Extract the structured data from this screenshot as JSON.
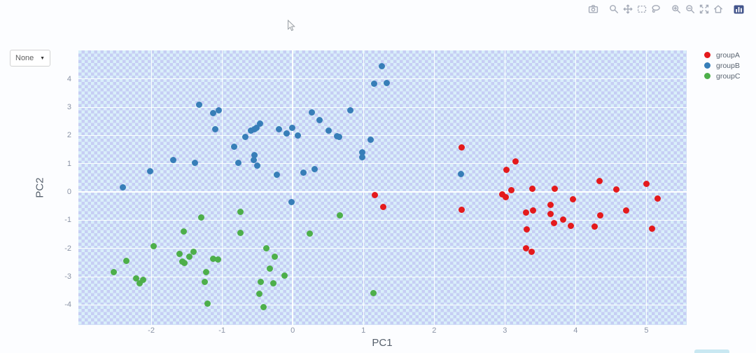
{
  "controls": {
    "dropdown": {
      "value": "None",
      "caret": "▼"
    }
  },
  "modebar": {
    "icons": [
      "camera",
      "zoom",
      "pan",
      "box-select",
      "lasso",
      "zoom-in",
      "zoom-out",
      "autoscale",
      "reset-home",
      "plotly-logo"
    ],
    "icon_color": "#a5abb8",
    "logo_color": "#43558c"
  },
  "legend": {
    "position": "right",
    "items": [
      {
        "label": "groupA",
        "color": "#e41a1c"
      },
      {
        "label": "groupB",
        "color": "#377eb8"
      },
      {
        "label": "groupC",
        "color": "#4daf4a"
      }
    ]
  },
  "chart_data": {
    "type": "scatter",
    "title": "",
    "xlabel": "PC1",
    "ylabel": "PC2",
    "xlim": [
      -3.03,
      5.57
    ],
    "ylim": [
      -4.71,
      5.01
    ],
    "xticks": [
      -2,
      -1,
      0,
      1,
      2,
      3,
      4,
      5
    ],
    "yticks": [
      -4,
      -3,
      -2,
      -1,
      0,
      1,
      2,
      3,
      4
    ],
    "grid": true,
    "grid_color": "#ffffff",
    "background_pattern_colors": [
      "#d9effa",
      "#c6c2ee"
    ],
    "marker_size_px": 9,
    "legend_position": "right",
    "series": [
      {
        "name": "groupA",
        "color": "#e41a1c",
        "points": [
          [
            1.16,
            -0.11
          ],
          [
            1.28,
            -0.53
          ],
          [
            2.39,
            1.58
          ],
          [
            2.39,
            -0.63
          ],
          [
            2.96,
            -0.08
          ],
          [
            3.01,
            -0.19
          ],
          [
            3.02,
            0.79
          ],
          [
            3.09,
            0.06
          ],
          [
            3.15,
            1.07
          ],
          [
            3.3,
            -0.73
          ],
          [
            3.4,
            -0.65
          ],
          [
            3.3,
            -1.99
          ],
          [
            3.38,
            -2.13
          ],
          [
            3.31,
            -1.32
          ],
          [
            3.39,
            0.12
          ],
          [
            3.65,
            -0.46
          ],
          [
            3.65,
            -0.77
          ],
          [
            3.7,
            0.12
          ],
          [
            3.69,
            -1.11
          ],
          [
            3.82,
            -0.98
          ],
          [
            3.93,
            -1.19
          ],
          [
            3.96,
            -0.26
          ],
          [
            4.27,
            -1.22
          ],
          [
            4.34,
            0.39
          ],
          [
            4.35,
            -0.84
          ],
          [
            4.58,
            0.1
          ],
          [
            4.71,
            -0.66
          ],
          [
            5.0,
            0.29
          ],
          [
            5.08,
            -1.31
          ],
          [
            5.16,
            -0.23
          ]
        ]
      },
      {
        "name": "groupB",
        "color": "#377eb8",
        "points": [
          [
            -2.4,
            0.17
          ],
          [
            -2.02,
            0.74
          ],
          [
            -1.69,
            1.14
          ],
          [
            -1.38,
            1.02
          ],
          [
            -1.32,
            3.1
          ],
          [
            -1.12,
            2.8
          ],
          [
            -1.05,
            2.88
          ],
          [
            -1.1,
            2.23
          ],
          [
            -0.83,
            1.61
          ],
          [
            -0.77,
            1.02
          ],
          [
            -0.67,
            1.94
          ],
          [
            -0.59,
            2.18
          ],
          [
            -0.54,
            2.23
          ],
          [
            -0.51,
            2.26
          ],
          [
            -0.46,
            2.41
          ],
          [
            -0.55,
            1.14
          ],
          [
            -0.54,
            1.31
          ],
          [
            -0.5,
            0.94
          ],
          [
            -0.22,
            0.6
          ],
          [
            -0.19,
            2.21
          ],
          [
            -0.09,
            2.08
          ],
          [
            0.07,
            1.99
          ],
          [
            -0.01,
            2.28
          ],
          [
            0.27,
            2.82
          ],
          [
            0.38,
            2.55
          ],
          [
            0.51,
            2.16
          ],
          [
            0.63,
            1.97
          ],
          [
            0.66,
            1.94
          ],
          [
            0.81,
            2.88
          ],
          [
            0.98,
            1.39
          ],
          [
            0.98,
            1.22
          ],
          [
            1.1,
            1.85
          ],
          [
            0.15,
            0.69
          ],
          [
            0.31,
            0.81
          ],
          [
            1.26,
            4.45
          ],
          [
            1.15,
            3.82
          ],
          [
            1.33,
            3.85
          ],
          [
            -0.02,
            -0.35
          ],
          [
            2.38,
            0.63
          ]
        ]
      },
      {
        "name": "groupC",
        "color": "#4daf4a",
        "points": [
          [
            -2.53,
            -2.85
          ],
          [
            -2.35,
            -2.44
          ],
          [
            -2.21,
            -3.07
          ],
          [
            -2.11,
            -3.1
          ],
          [
            -2.16,
            -3.24
          ],
          [
            -1.97,
            -1.91
          ],
          [
            -1.6,
            -2.2
          ],
          [
            -1.54,
            -1.4
          ],
          [
            -1.56,
            -2.47
          ],
          [
            -1.53,
            -2.51
          ],
          [
            -1.46,
            -2.28
          ],
          [
            -1.4,
            -2.12
          ],
          [
            -1.29,
            -0.91
          ],
          [
            -1.24,
            -3.19
          ],
          [
            -1.22,
            -2.84
          ],
          [
            -1.2,
            -3.95
          ],
          [
            -1.12,
            -2.37
          ],
          [
            -1.06,
            -2.38
          ],
          [
            -0.74,
            -0.71
          ],
          [
            -0.74,
            -1.44
          ],
          [
            -0.47,
            -3.61
          ],
          [
            -0.45,
            -3.18
          ],
          [
            -0.41,
            -4.08
          ],
          [
            -0.37,
            -2.0
          ],
          [
            -0.32,
            -2.72
          ],
          [
            -0.27,
            -3.24
          ],
          [
            -0.25,
            -2.28
          ],
          [
            -0.12,
            -2.95
          ],
          [
            0.24,
            -1.47
          ],
          [
            0.67,
            -0.84
          ],
          [
            1.14,
            -3.57
          ]
        ]
      }
    ]
  }
}
